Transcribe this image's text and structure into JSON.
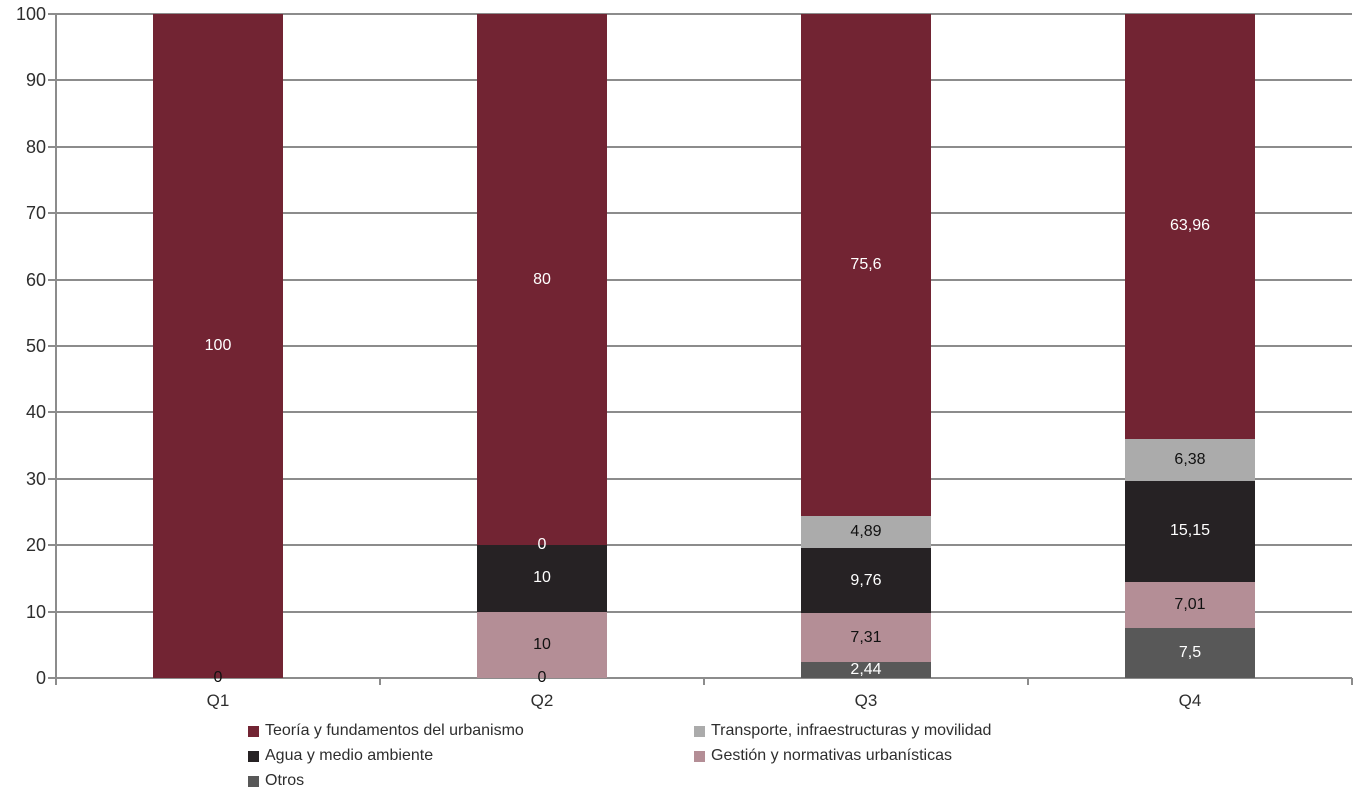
{
  "chart_data": {
    "type": "bar",
    "stacked": true,
    "title": "",
    "xlabel": "",
    "ylabel": "",
    "categories": [
      "Q1",
      "Q2",
      "Q3",
      "Q4"
    ],
    "ylim": [
      0,
      100
    ],
    "y_step": 10,
    "y_tick_labels": [
      "0",
      "10",
      "20",
      "30",
      "40",
      "50",
      "60",
      "70",
      "80",
      "90",
      "100"
    ],
    "grid": true,
    "legend_position": "bottom",
    "decimal_separator": ",",
    "stack_order_note": "series listed top-of-stack first; stacking bottom-to-top is reverse order",
    "series": [
      {
        "name": "Teoría y fundamentos del urbanismo",
        "color": "#722433",
        "values": [
          100,
          80,
          75.6,
          63.96
        ],
        "labels": [
          "100",
          "80",
          "75,6",
          "63,96"
        ],
        "label_colors": [
          "#FFFFFF",
          "#FFFFFF",
          "#FFFFFF",
          "#FFFFFF"
        ]
      },
      {
        "name": "Transporte, infraestructuras y movilidad",
        "color": "#ABABAB",
        "values": [
          0,
          0,
          4.89,
          6.38
        ],
        "labels": [
          null,
          "0",
          "4,89",
          "6,38"
        ],
        "label_colors": [
          null,
          "#FFFFFF",
          "#111111",
          "#111111"
        ]
      },
      {
        "name": "Agua y medio ambiente",
        "color": "#262224",
        "values": [
          0,
          10,
          9.76,
          15.15
        ],
        "labels": [
          null,
          "10",
          "9,76",
          "15,15"
        ],
        "label_colors": [
          null,
          "#FFFFFF",
          "#FFFFFF",
          "#FFFFFF"
        ]
      },
      {
        "name": "Gestión y normativas urbanísticas",
        "color": "#B48E96",
        "values": [
          0,
          10,
          7.31,
          7.01
        ],
        "labels": [
          null,
          "10",
          "7,31",
          "7,01"
        ],
        "label_colors": [
          null,
          "#111111",
          "#111111",
          "#111111"
        ]
      },
      {
        "name": "Otros",
        "color": "#585858",
        "values": [
          0,
          0,
          2.44,
          7.5
        ],
        "labels": [
          "0",
          "0",
          "2,44",
          "7,5"
        ],
        "label_colors": [
          "#111111",
          "#111111",
          "#FFFFFF",
          "#FFFFFF"
        ]
      }
    ],
    "colors": {
      "grid": "#8C8C8C",
      "axis_text": "#2E2E2E",
      "background": "#FFFFFF"
    }
  }
}
